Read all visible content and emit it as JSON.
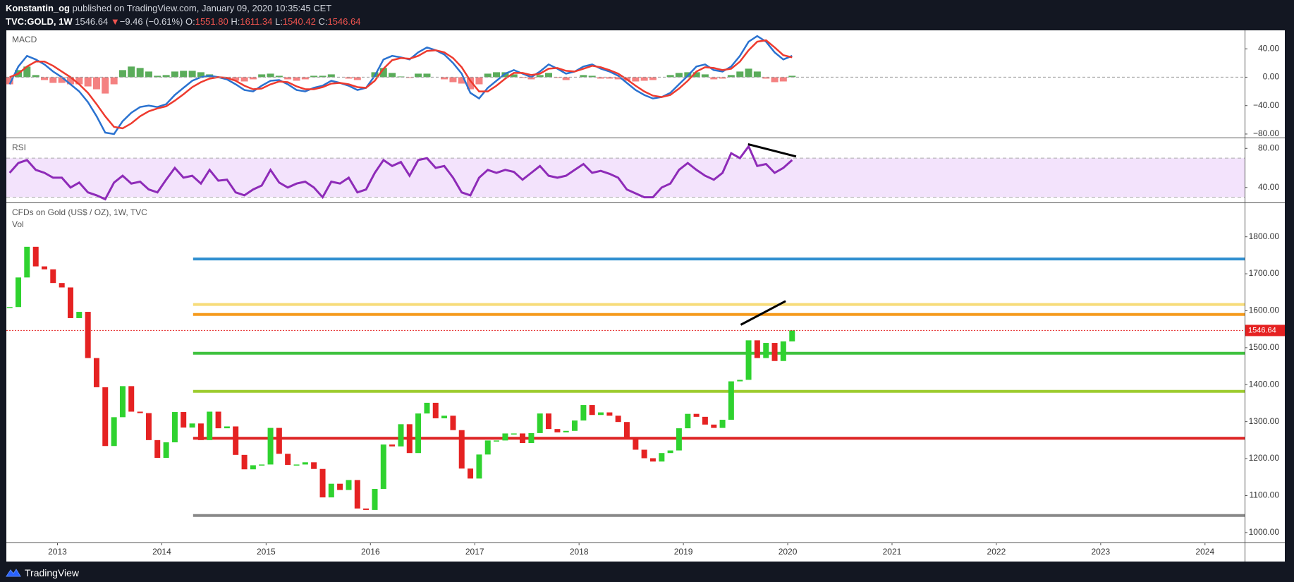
{
  "header": {
    "author": "Konstantin_og",
    "published": "published on TradingView.com, January 09, 2020 10:35:45 CET",
    "symbol": "TVC:GOLD, 1W",
    "price": "1546.64",
    "arrow": "▼",
    "change": "−9.46 (−0.61%)",
    "o_label": "O:",
    "o": "1551.80",
    "h_label": "H:",
    "h": "1611.34",
    "l_label": "L:",
    "l": "1540.42",
    "c_label": "C:",
    "c": "1546.64"
  },
  "footer": {
    "brand": "TradingView"
  },
  "chart_data": [
    {
      "type": "macd",
      "title": "MACD",
      "x": [
        2012.542,
        2012.625,
        2012.708,
        2012.792,
        2012.875,
        2012.958,
        2013.042,
        2013.125,
        2013.208,
        2013.292,
        2013.375,
        2013.458,
        2013.542,
        2013.625,
        2013.708,
        2013.792,
        2013.875,
        2013.958,
        2014.042,
        2014.125,
        2014.208,
        2014.292,
        2014.375,
        2014.458,
        2014.542,
        2014.625,
        2014.708,
        2014.792,
        2014.875,
        2014.958,
        2015.042,
        2015.125,
        2015.208,
        2015.292,
        2015.375,
        2015.458,
        2015.542,
        2015.625,
        2015.708,
        2015.792,
        2015.875,
        2015.958,
        2016.042,
        2016.125,
        2016.208,
        2016.292,
        2016.375,
        2016.458,
        2016.542,
        2016.625,
        2016.708,
        2016.792,
        2016.875,
        2016.958,
        2017.042,
        2017.125,
        2017.208,
        2017.292,
        2017.375,
        2017.458,
        2017.542,
        2017.625,
        2017.708,
        2017.792,
        2017.875,
        2017.958,
        2018.042,
        2018.125,
        2018.208,
        2018.292,
        2018.375,
        2018.458,
        2018.542,
        2018.625,
        2018.708,
        2018.792,
        2018.875,
        2018.958,
        2019.042,
        2019.125,
        2019.208,
        2019.292,
        2019.375,
        2019.458,
        2019.542,
        2019.625,
        2019.708,
        2019.792,
        2019.875,
        2019.958,
        2020.042
      ],
      "series": [
        {
          "style": "histogram",
          "color": "#3d9d3d",
          "negative_color": "#f26b6b",
          "values": [
            -10,
            10,
            15,
            3,
            -4,
            -8,
            -8,
            -10,
            -10,
            -13,
            -17,
            -23,
            -10,
            10,
            15,
            13,
            8,
            2,
            3,
            8,
            9,
            9,
            7,
            4,
            0,
            -2,
            -5,
            -6,
            -3,
            4,
            5,
            2,
            -3,
            -5,
            -3,
            2,
            2,
            4,
            0,
            -2,
            -4,
            0,
            7,
            13,
            6,
            1,
            -1,
            5,
            5,
            0,
            -3,
            -7,
            -9,
            -17,
            -10,
            5,
            7,
            7,
            4,
            -1,
            -3,
            3,
            6,
            -1,
            -4,
            0,
            3,
            2,
            -2,
            -2,
            -3,
            -5,
            -6,
            -5,
            -4,
            0,
            3,
            6,
            7,
            7,
            4,
            -3,
            -2,
            3,
            8,
            12,
            8,
            -2,
            -7,
            -6,
            2
          ]
        },
        {
          "style": "line",
          "color": "#2a72d0",
          "values": [
            -10,
            15,
            30,
            25,
            18,
            8,
            0,
            -10,
            -20,
            -35,
            -55,
            -78,
            -80,
            -62,
            -50,
            -42,
            -40,
            -42,
            -38,
            -25,
            -15,
            -5,
            0,
            2,
            0,
            -3,
            -10,
            -18,
            -20,
            -12,
            -5,
            -4,
            -10,
            -18,
            -20,
            -15,
            -12,
            -5,
            -8,
            -12,
            -18,
            -15,
            2,
            25,
            30,
            28,
            25,
            35,
            42,
            38,
            32,
            20,
            5,
            -22,
            -30,
            -15,
            -5,
            5,
            10,
            5,
            0,
            8,
            18,
            12,
            5,
            8,
            15,
            18,
            12,
            8,
            2,
            -8,
            -18,
            -25,
            -30,
            -28,
            -22,
            -10,
            2,
            15,
            18,
            10,
            8,
            15,
            30,
            50,
            58,
            50,
            35,
            25,
            30
          ]
        },
        {
          "style": "line",
          "color": "#ee3a2e",
          "values": [
            0,
            5,
            15,
            22,
            22,
            16,
            8,
            0,
            -10,
            -22,
            -38,
            -55,
            -70,
            -72,
            -65,
            -55,
            -48,
            -44,
            -41,
            -33,
            -24,
            -14,
            -7,
            -2,
            0,
            -1,
            -5,
            -12,
            -17,
            -16,
            -10,
            -6,
            -7,
            -13,
            -17,
            -17,
            -14,
            -9,
            -8,
            -10,
            -14,
            -15,
            -5,
            12,
            24,
            27,
            26,
            30,
            37,
            38,
            35,
            27,
            14,
            -5,
            -20,
            -20,
            -12,
            -2,
            6,
            6,
            3,
            5,
            12,
            13,
            9,
            8,
            12,
            16,
            14,
            10,
            5,
            -3,
            -12,
            -20,
            -26,
            -28,
            -25,
            -16,
            -5,
            8,
            14,
            13,
            10,
            12,
            22,
            38,
            50,
            52,
            42,
            31,
            28
          ]
        }
      ],
      "xlim": [
        2012.51,
        2024.38
      ],
      "ylim": [
        -85,
        66
      ],
      "yticks": [
        {
          "value": 40,
          "label": "40.00"
        },
        {
          "value": 0,
          "label": "0.00"
        },
        {
          "value": -40,
          "label": "−40.00"
        },
        {
          "value": -80,
          "label": "−80.00"
        }
      ]
    },
    {
      "type": "rsi",
      "title": "RSI",
      "band": [
        30,
        70
      ],
      "band_color": "#f3e3fc",
      "x": [
        2012.542,
        2012.625,
        2012.708,
        2012.792,
        2012.875,
        2012.958,
        2013.042,
        2013.125,
        2013.208,
        2013.292,
        2013.375,
        2013.458,
        2013.542,
        2013.625,
        2013.708,
        2013.792,
        2013.875,
        2013.958,
        2014.042,
        2014.125,
        2014.208,
        2014.292,
        2014.375,
        2014.458,
        2014.542,
        2014.625,
        2014.708,
        2014.792,
        2014.875,
        2014.958,
        2015.042,
        2015.125,
        2015.208,
        2015.292,
        2015.375,
        2015.458,
        2015.542,
        2015.625,
        2015.708,
        2015.792,
        2015.875,
        2015.958,
        2016.042,
        2016.125,
        2016.208,
        2016.292,
        2016.375,
        2016.458,
        2016.542,
        2016.625,
        2016.708,
        2016.792,
        2016.875,
        2016.958,
        2017.042,
        2017.125,
        2017.208,
        2017.292,
        2017.375,
        2017.458,
        2017.542,
        2017.625,
        2017.708,
        2017.792,
        2017.875,
        2017.958,
        2018.042,
        2018.125,
        2018.208,
        2018.292,
        2018.375,
        2018.458,
        2018.542,
        2018.625,
        2018.708,
        2018.792,
        2018.875,
        2018.958,
        2019.042,
        2019.125,
        2019.208,
        2019.292,
        2019.375,
        2019.458,
        2019.542,
        2019.625,
        2019.708,
        2019.792,
        2019.875,
        2019.958,
        2020.042
      ],
      "series": [
        {
          "color": "#8e2bb8",
          "values": [
            55,
            65,
            68,
            58,
            55,
            50,
            50,
            40,
            45,
            35,
            32,
            28,
            45,
            52,
            44,
            46,
            38,
            35,
            48,
            60,
            50,
            52,
            44,
            58,
            47,
            48,
            35,
            32,
            38,
            42,
            58,
            45,
            40,
            44,
            46,
            40,
            30,
            46,
            44,
            50,
            35,
            38,
            55,
            68,
            62,
            66,
            52,
            68,
            70,
            60,
            62,
            50,
            35,
            32,
            50,
            58,
            55,
            58,
            56,
            48,
            55,
            62,
            52,
            50,
            52,
            58,
            64,
            55,
            57,
            54,
            50,
            38,
            34,
            30,
            30,
            40,
            44,
            58,
            65,
            58,
            52,
            48,
            55,
            75,
            70,
            82,
            62,
            64,
            55,
            60,
            68
          ]
        }
      ],
      "trendlines": [
        {
          "x": [
            2019.62,
            2020.08
          ],
          "y": [
            84.2,
            71.7
          ],
          "color": "#000000"
        }
      ],
      "xlim": [
        2012.51,
        2024.38
      ],
      "ylim": [
        24.7,
        90.3
      ],
      "yticks": [
        {
          "value": 80,
          "label": "80.00"
        },
        {
          "value": 40,
          "label": "40.00"
        }
      ]
    },
    {
      "type": "candlestick",
      "title": "CFDs on Gold (US$ / OZ), 1W, TVC",
      "subtitle": "Vol",
      "up_color": "#2fd22f",
      "down_color": "#e52222",
      "x": [
        2012.542,
        2012.625,
        2012.708,
        2012.792,
        2012.875,
        2012.958,
        2013.042,
        2013.125,
        2013.208,
        2013.292,
        2013.375,
        2013.458,
        2013.542,
        2013.625,
        2013.708,
        2013.792,
        2013.875,
        2013.958,
        2014.042,
        2014.125,
        2014.208,
        2014.292,
        2014.375,
        2014.458,
        2014.542,
        2014.625,
        2014.708,
        2014.792,
        2014.875,
        2014.958,
        2015.042,
        2015.125,
        2015.208,
        2015.292,
        2015.375,
        2015.458,
        2015.542,
        2015.625,
        2015.708,
        2015.792,
        2015.875,
        2015.958,
        2016.042,
        2016.125,
        2016.208,
        2016.292,
        2016.375,
        2016.458,
        2016.542,
        2016.625,
        2016.708,
        2016.792,
        2016.875,
        2016.958,
        2017.042,
        2017.125,
        2017.208,
        2017.292,
        2017.375,
        2017.458,
        2017.542,
        2017.625,
        2017.708,
        2017.792,
        2017.875,
        2017.958,
        2018.042,
        2018.125,
        2018.208,
        2018.292,
        2018.375,
        2018.458,
        2018.542,
        2018.625,
        2018.708,
        2018.792,
        2018.875,
        2018.958,
        2019.042,
        2019.125,
        2019.208,
        2019.292,
        2019.375,
        2019.458,
        2019.542,
        2019.625,
        2019.708,
        2019.792,
        2019.875,
        2019.958,
        2020.042
      ],
      "values": [
        1610,
        1690,
        1773,
        1720,
        1712,
        1675,
        1663,
        1580,
        1597,
        1472,
        1393,
        1234,
        1312,
        1396,
        1327,
        1323,
        1250,
        1202,
        1244,
        1326,
        1284,
        1295,
        1250,
        1327,
        1282,
        1287,
        1210,
        1171,
        1182,
        1184,
        1283,
        1213,
        1183,
        1184,
        1190,
        1172,
        1095,
        1132,
        1115,
        1142,
        1065,
        1061,
        1118,
        1238,
        1233,
        1293,
        1215,
        1322,
        1351,
        1309,
        1316,
        1277,
        1173,
        1146,
        1211,
        1249,
        1249,
        1268,
        1268,
        1242,
        1269,
        1322,
        1280,
        1271,
        1275,
        1303,
        1345,
        1318,
        1325,
        1316,
        1299,
        1253,
        1224,
        1201,
        1192,
        1215,
        1222,
        1282,
        1321,
        1313,
        1292,
        1283,
        1305,
        1409,
        1413,
        1520,
        1472,
        1513,
        1464,
        1517,
        1546.64
      ],
      "last_price": 1546.64,
      "last_price_color": "#e52222",
      "levels": [
        {
          "value": 1740,
          "color": "#2f8fd0",
          "start": 2014.3
        },
        {
          "value": 1617,
          "color": "#f7dc7a",
          "start": 2014.3
        },
        {
          "value": 1590,
          "color": "#f59a1c",
          "start": 2014.3
        },
        {
          "value": 1485,
          "color": "#3fc23f",
          "start": 2014.3
        },
        {
          "value": 1382,
          "color": "#9ccc2e",
          "start": 2014.3
        },
        {
          "value": 1255,
          "color": "#dd2525",
          "start": 2014.3
        },
        {
          "value": 1046,
          "color": "#888888",
          "start": 2014.3
        }
      ],
      "trendlines": [
        {
          "x": [
            2019.55,
            2019.98
          ],
          "y": [
            1562,
            1626
          ],
          "color": "#000000"
        }
      ],
      "xlim": [
        2012.51,
        2024.38
      ],
      "ylim": [
        973,
        1891
      ],
      "xticks": [
        2013,
        2014,
        2015,
        2016,
        2017,
        2018,
        2019,
        2020,
        2021,
        2022,
        2023,
        2024
      ],
      "yticks": [
        {
          "value": 1000,
          "label": "1000.00"
        },
        {
          "value": 1100,
          "label": "1100.00"
        },
        {
          "value": 1200,
          "label": "1200.00"
        },
        {
          "value": 1300,
          "label": "1300.00"
        },
        {
          "value": 1400,
          "label": "1400.00"
        },
        {
          "value": 1500,
          "label": "1500.00"
        },
        {
          "value": 1600,
          "label": "1600.00"
        },
        {
          "value": 1700,
          "label": "1700.00"
        },
        {
          "value": 1800,
          "label": "1800.00"
        }
      ]
    }
  ]
}
